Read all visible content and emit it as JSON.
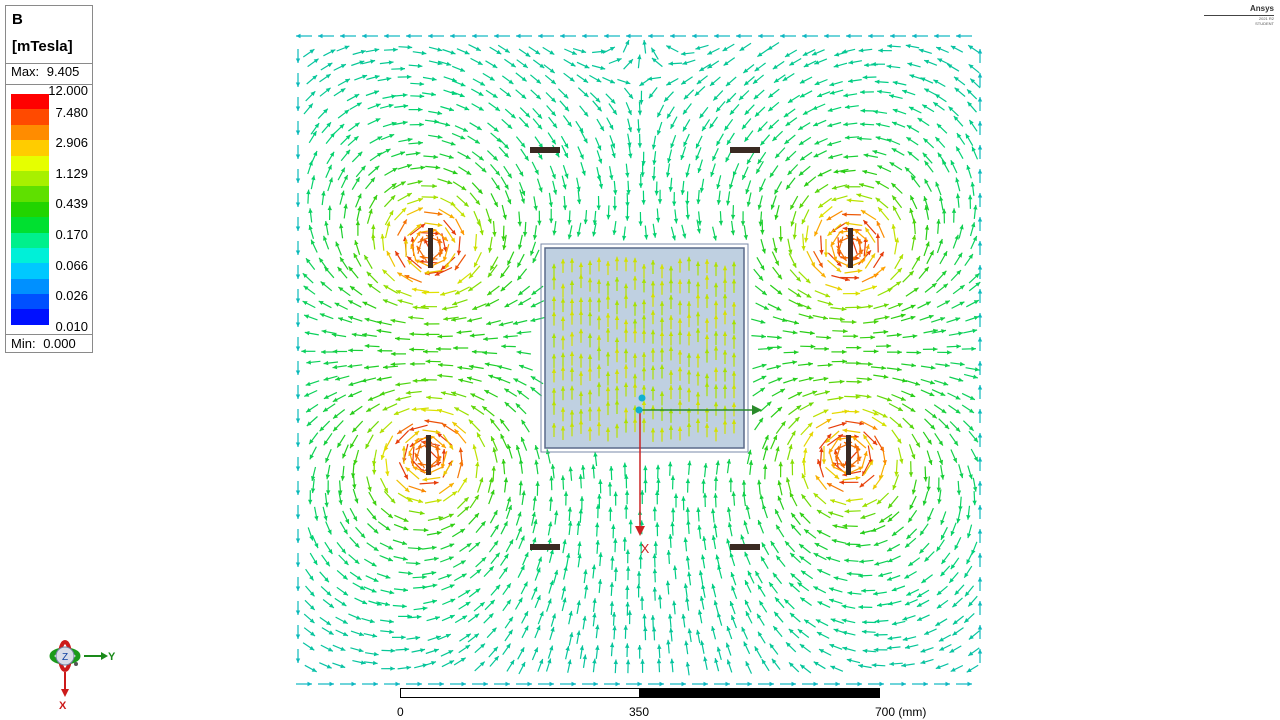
{
  "legend": {
    "quantity": "B",
    "unit": "[mTesla]",
    "max_label": "Max:",
    "max_value": "9.405",
    "min_label": "Min:",
    "min_value": "0.000",
    "ticks": [
      "12.000",
      "7.480",
      "2.906",
      "1.129",
      "0.439",
      "0.170",
      "0.066",
      "0.026",
      "0.010"
    ],
    "colors": [
      "#ff0000",
      "#ff4a00",
      "#ff8c00",
      "#ffcc00",
      "#e6ff00",
      "#a8f000",
      "#5fe000",
      "#22d400",
      "#00e030",
      "#00f08c",
      "#00f0d8",
      "#00c8ff",
      "#0090ff",
      "#0050ff",
      "#0010ff"
    ]
  },
  "logo": {
    "name": "Ansys",
    "version": "2021 R2",
    "edition": "STUDENT"
  },
  "scale_bar": {
    "labels": [
      "0",
      "350",
      "700 (mm)"
    ]
  },
  "triad": {
    "z": "Z",
    "y": "Y",
    "x": "X"
  },
  "plot": {
    "axis_label_x": "X",
    "conductor_color": "#3a2a22",
    "core_fill": "#b4c8dc",
    "core_edge": "#5a6a8a"
  }
}
